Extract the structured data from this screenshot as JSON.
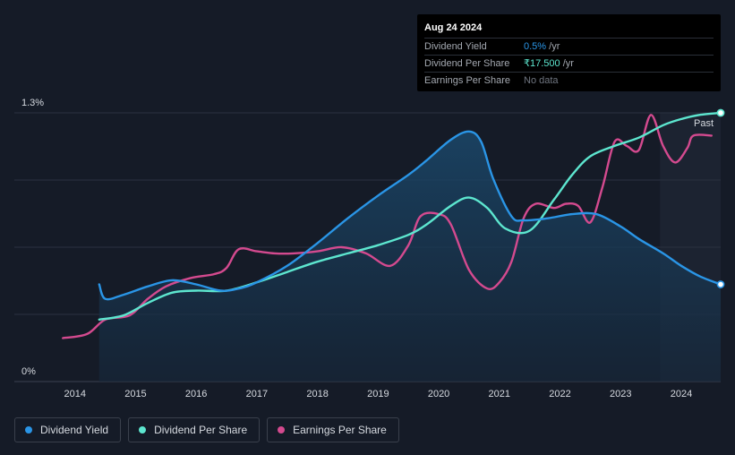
{
  "tooltip": {
    "date": "Aug 24 2024",
    "rows": [
      {
        "label": "Dividend Yield",
        "value": "0.5%",
        "unit": " /yr"
      },
      {
        "label": "Dividend Per Share",
        "value": "₹17.500",
        "unit": " /yr"
      },
      {
        "label": "Earnings Per Share",
        "value": "No data",
        "unit": ""
      }
    ]
  },
  "legend": [
    {
      "label": "Dividend Yield",
      "color": "#2a95e6"
    },
    {
      "label": "Dividend Per Share",
      "color": "#5de6cf"
    },
    {
      "label": "Earnings Per Share",
      "color": "#d44a8f"
    }
  ],
  "colors": {
    "background": "#151b27",
    "past_region": "#1c2331",
    "grid": "#2a3140",
    "area_top": "#1b4a6e",
    "area_bottom": "#16273a"
  },
  "chart_data": {
    "type": "line",
    "title": "",
    "xlabel": "",
    "ylabel": "",
    "x_ticks": [
      "2014",
      "2015",
      "2016",
      "2017",
      "2018",
      "2019",
      "2020",
      "2021",
      "2022",
      "2023",
      "2024"
    ],
    "y_ticks": [
      "1.3%",
      "0%"
    ],
    "xlim": [
      2013.0,
      2024.65
    ],
    "ylim": [
      0,
      1.3
    ],
    "past_label": "Past",
    "past_start": 2023.65,
    "series": [
      {
        "name": "Dividend Yield",
        "color": "#2a95e6",
        "area": true,
        "end_marker": true,
        "points": [
          [
            2014.4,
            0.47
          ],
          [
            2014.5,
            0.4
          ],
          [
            2014.8,
            0.42
          ],
          [
            2015.2,
            0.46
          ],
          [
            2015.6,
            0.49
          ],
          [
            2016.0,
            0.47
          ],
          [
            2016.4,
            0.44
          ],
          [
            2016.7,
            0.45
          ],
          [
            2017.0,
            0.48
          ],
          [
            2017.5,
            0.56
          ],
          [
            2018.0,
            0.67
          ],
          [
            2018.5,
            0.79
          ],
          [
            2019.0,
            0.9
          ],
          [
            2019.5,
            1.0
          ],
          [
            2019.8,
            1.07
          ],
          [
            2020.2,
            1.17
          ],
          [
            2020.5,
            1.21
          ],
          [
            2020.7,
            1.16
          ],
          [
            2020.9,
            0.98
          ],
          [
            2021.2,
            0.8
          ],
          [
            2021.4,
            0.78
          ],
          [
            2021.8,
            0.79
          ],
          [
            2022.2,
            0.81
          ],
          [
            2022.6,
            0.81
          ],
          [
            2023.0,
            0.75
          ],
          [
            2023.3,
            0.69
          ],
          [
            2023.7,
            0.62
          ],
          [
            2024.0,
            0.56
          ],
          [
            2024.3,
            0.51
          ],
          [
            2024.65,
            0.47
          ]
        ]
      },
      {
        "name": "Dividend Per Share",
        "color": "#5de6cf",
        "area": false,
        "end_marker": true,
        "points": [
          [
            2014.4,
            0.3
          ],
          [
            2014.8,
            0.32
          ],
          [
            2015.2,
            0.38
          ],
          [
            2015.6,
            0.43
          ],
          [
            2016.0,
            0.44
          ],
          [
            2016.5,
            0.44
          ],
          [
            2017.0,
            0.48
          ],
          [
            2017.5,
            0.53
          ],
          [
            2018.0,
            0.58
          ],
          [
            2018.5,
            0.62
          ],
          [
            2019.0,
            0.66
          ],
          [
            2019.5,
            0.71
          ],
          [
            2019.8,
            0.76
          ],
          [
            2020.2,
            0.85
          ],
          [
            2020.5,
            0.89
          ],
          [
            2020.8,
            0.84
          ],
          [
            2021.1,
            0.74
          ],
          [
            2021.5,
            0.73
          ],
          [
            2021.9,
            0.88
          ],
          [
            2022.2,
            1.0
          ],
          [
            2022.5,
            1.09
          ],
          [
            2022.9,
            1.14
          ],
          [
            2023.3,
            1.18
          ],
          [
            2023.7,
            1.24
          ],
          [
            2024.0,
            1.27
          ],
          [
            2024.3,
            1.29
          ],
          [
            2024.65,
            1.3
          ]
        ]
      },
      {
        "name": "Earnings Per Share",
        "color": "#d44a8f",
        "area": false,
        "end_marker": false,
        "points": [
          [
            2013.8,
            0.21
          ],
          [
            2014.2,
            0.23
          ],
          [
            2014.5,
            0.3
          ],
          [
            2014.9,
            0.32
          ],
          [
            2015.2,
            0.4
          ],
          [
            2015.5,
            0.46
          ],
          [
            2015.9,
            0.5
          ],
          [
            2016.3,
            0.52
          ],
          [
            2016.5,
            0.55
          ],
          [
            2016.7,
            0.64
          ],
          [
            2017.0,
            0.63
          ],
          [
            2017.3,
            0.62
          ],
          [
            2017.6,
            0.62
          ],
          [
            2018.0,
            0.63
          ],
          [
            2018.4,
            0.65
          ],
          [
            2018.8,
            0.62
          ],
          [
            2019.2,
            0.56
          ],
          [
            2019.5,
            0.66
          ],
          [
            2019.7,
            0.8
          ],
          [
            2020.0,
            0.81
          ],
          [
            2020.2,
            0.76
          ],
          [
            2020.5,
            0.54
          ],
          [
            2020.8,
            0.45
          ],
          [
            2021.0,
            0.48
          ],
          [
            2021.2,
            0.58
          ],
          [
            2021.4,
            0.79
          ],
          [
            2021.6,
            0.86
          ],
          [
            2021.9,
            0.84
          ],
          [
            2022.1,
            0.86
          ],
          [
            2022.3,
            0.85
          ],
          [
            2022.5,
            0.77
          ],
          [
            2022.7,
            0.94
          ],
          [
            2022.9,
            1.16
          ],
          [
            2023.1,
            1.14
          ],
          [
            2023.3,
            1.12
          ],
          [
            2023.5,
            1.29
          ],
          [
            2023.7,
            1.14
          ],
          [
            2023.9,
            1.06
          ],
          [
            2024.1,
            1.13
          ],
          [
            2024.2,
            1.19
          ],
          [
            2024.5,
            1.19
          ]
        ]
      }
    ]
  }
}
